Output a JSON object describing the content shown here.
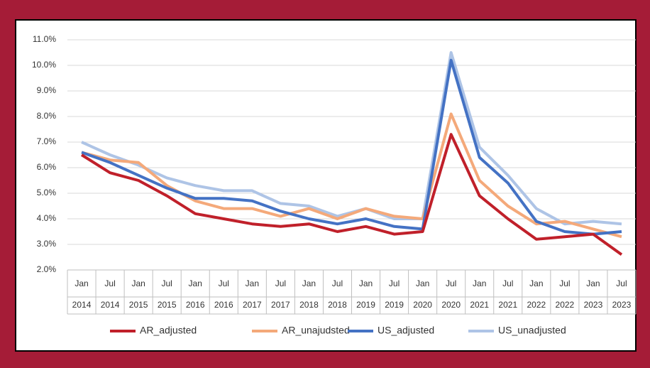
{
  "chart_data": {
    "type": "line",
    "categories": [
      [
        "Jan",
        "2014"
      ],
      [
        "Jul",
        "2014"
      ],
      [
        "Jan",
        "2015"
      ],
      [
        "Jul",
        "2015"
      ],
      [
        "Jan",
        "2016"
      ],
      [
        "Jul",
        "2016"
      ],
      [
        "Jan",
        "2017"
      ],
      [
        "Jul",
        "2017"
      ],
      [
        "Jan",
        "2018"
      ],
      [
        "Jul",
        "2018"
      ],
      [
        "Jan",
        "2019"
      ],
      [
        "Jul",
        "2019"
      ],
      [
        "Jan",
        "2020"
      ],
      [
        "Jul",
        "2020"
      ],
      [
        "Jan",
        "2021"
      ],
      [
        "Jul",
        "2021"
      ],
      [
        "Jan",
        "2022"
      ],
      [
        "Jul",
        "2022"
      ],
      [
        "Jan",
        "2023"
      ],
      [
        "Jul",
        "2023"
      ]
    ],
    "series": [
      {
        "name": "AR_adjusted",
        "color": "#c0202a",
        "values": [
          6.5,
          5.8,
          5.5,
          4.9,
          4.2,
          4.0,
          3.8,
          3.7,
          3.8,
          3.5,
          3.7,
          3.4,
          3.5,
          7.3,
          4.9,
          4.0,
          3.2,
          3.3,
          3.4,
          2.6
        ]
      },
      {
        "name": "AR_unajudsted",
        "color": "#f4a97a",
        "values": [
          6.6,
          6.3,
          6.2,
          5.3,
          4.7,
          4.4,
          4.4,
          4.1,
          4.4,
          4.0,
          4.4,
          4.1,
          4.0,
          8.1,
          5.5,
          4.5,
          3.8,
          3.9,
          3.6,
          3.3
        ]
      },
      {
        "name": "US_adjusted",
        "color": "#4472c4",
        "values": [
          6.6,
          6.2,
          5.7,
          5.2,
          4.8,
          4.8,
          4.7,
          4.3,
          4.0,
          3.8,
          4.0,
          3.7,
          3.6,
          10.2,
          6.4,
          5.4,
          3.9,
          3.5,
          3.4,
          3.5
        ]
      },
      {
        "name": "US_unadjusted",
        "color": "#aec4e6",
        "values": [
          7.0,
          6.5,
          6.1,
          5.6,
          5.3,
          5.1,
          5.1,
          4.6,
          4.5,
          4.1,
          4.4,
          4.0,
          4.0,
          10.5,
          6.8,
          5.7,
          4.4,
          3.8,
          3.9,
          3.8
        ]
      }
    ],
    "ylim": [
      2,
      11
    ],
    "yticks": [
      {
        "value": 2,
        "label": "2.0%"
      },
      {
        "value": 3,
        "label": "3.0%"
      },
      {
        "value": 4,
        "label": "4.0%"
      },
      {
        "value": 5,
        "label": "5.0%"
      },
      {
        "value": 6,
        "label": "6.0%"
      },
      {
        "value": 7,
        "label": "7.0%"
      },
      {
        "value": 8,
        "label": "8.0%"
      },
      {
        "value": 9,
        "label": "9.0%"
      },
      {
        "value": 10,
        "label": "10.0%"
      },
      {
        "value": 11,
        "label": "11.0%"
      }
    ],
    "grid": true,
    "legend": "bottom"
  }
}
